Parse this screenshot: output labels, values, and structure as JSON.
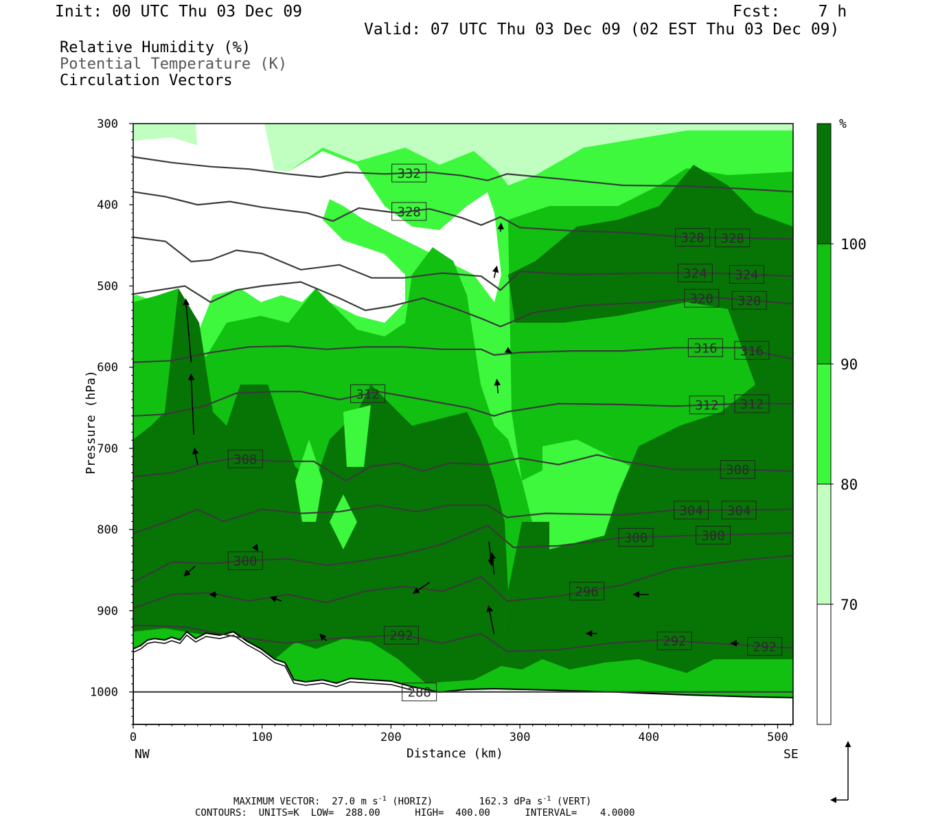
{
  "header": {
    "init": "Init: 00 UTC Thu 03 Dec 09",
    "fcst": "Fcst:    7 h",
    "valid": "Valid: 07 UTC Thu 03 Dec 09 (02 EST Thu 03 Dec 09)"
  },
  "legend": {
    "rh": "Relative Humidity (%)",
    "theta": "Potential Temperature (K)",
    "vectors": "Circulation Vectors"
  },
  "chart_data": {
    "type": "heatmap",
    "title": "Relative Humidity (%)",
    "xlabel": "Distance (km)",
    "ylabel": "Pressure (hPa)",
    "xlim": [
      0,
      512
    ],
    "ylim": [
      1040,
      300
    ],
    "x_ticks": [
      "0",
      "100",
      "200",
      "300",
      "400",
      "500"
    ],
    "y_ticks": [
      "300",
      "400",
      "500",
      "600",
      "700",
      "800",
      "900",
      "1000"
    ],
    "x_end_labels": {
      "left": "NW",
      "right": "SE"
    },
    "colorbar": {
      "unit": "%",
      "levels": [
        "70",
        "80",
        "90",
        "100"
      ],
      "colors": [
        "#ffffff",
        "#c0ffc0",
        "#3df83d",
        "#12c012",
        "#067506"
      ]
    },
    "isentropes": [
      {
        "theta": 288,
        "labels": [
          {
            "text": "288",
            "x": 222
          }
        ],
        "points": [
          [
            0,
            1000
          ],
          [
            512,
            1000
          ]
        ]
      },
      {
        "theta": 292,
        "labels": [
          {
            "text": "292",
            "x": 208
          },
          {
            "text": "292",
            "x": 420
          },
          {
            "text": "292",
            "x": 490
          }
        ],
        "points": [
          [
            0,
            918
          ],
          [
            40,
            920
          ],
          [
            80,
            932
          ],
          [
            120,
            940
          ],
          [
            150,
            935
          ],
          [
            180,
            932
          ],
          [
            210,
            930
          ],
          [
            240,
            940
          ],
          [
            270,
            928
          ],
          [
            290,
            950
          ],
          [
            330,
            948
          ],
          [
            370,
            940
          ],
          [
            410,
            936
          ],
          [
            450,
            940
          ],
          [
            512,
            946
          ]
        ]
      },
      {
        "theta": 296,
        "labels": [
          {
            "text": "296",
            "x": 352
          }
        ],
        "points": [
          [
            0,
            897
          ],
          [
            30,
            880
          ],
          [
            60,
            878
          ],
          [
            90,
            888
          ],
          [
            120,
            880
          ],
          [
            150,
            890
          ],
          [
            180,
            876
          ],
          [
            210,
            870
          ],
          [
            240,
            876
          ],
          [
            270,
            858
          ],
          [
            290,
            888
          ],
          [
            330,
            882
          ],
          [
            380,
            868
          ],
          [
            420,
            848
          ],
          [
            470,
            838
          ],
          [
            512,
            832
          ]
        ]
      },
      {
        "theta": 300,
        "labels": [
          {
            "text": "300",
            "x": 87
          },
          {
            "text": "300",
            "x": 390
          },
          {
            "text": "300",
            "x": 450
          }
        ],
        "points": [
          [
            0,
            865
          ],
          [
            30,
            840
          ],
          [
            60,
            842
          ],
          [
            90,
            838
          ],
          [
            120,
            836
          ],
          [
            150,
            844
          ],
          [
            180,
            838
          ],
          [
            210,
            830
          ],
          [
            240,
            818
          ],
          [
            275,
            795
          ],
          [
            295,
            822
          ],
          [
            330,
            820
          ],
          [
            380,
            810
          ],
          [
            420,
            808
          ],
          [
            470,
            806
          ],
          [
            512,
            804
          ]
        ]
      },
      {
        "theta": 304,
        "labels": [
          {
            "text": "304",
            "x": 433
          },
          {
            "text": "304",
            "x": 470
          }
        ],
        "points": [
          [
            0,
            805
          ],
          [
            30,
            788
          ],
          [
            50,
            775
          ],
          [
            70,
            790
          ],
          [
            100,
            775
          ],
          [
            130,
            780
          ],
          [
            160,
            778
          ],
          [
            190,
            770
          ],
          [
            220,
            778
          ],
          [
            245,
            770
          ],
          [
            275,
            770
          ],
          [
            290,
            785
          ],
          [
            320,
            780
          ],
          [
            380,
            782
          ],
          [
            420,
            776
          ],
          [
            470,
            776
          ],
          [
            512,
            775
          ]
        ]
      },
      {
        "theta": 308,
        "labels": [
          {
            "text": "308",
            "x": 87
          },
          {
            "text": "308",
            "x": 469
          }
        ],
        "points": [
          [
            0,
            735
          ],
          [
            30,
            730
          ],
          [
            55,
            718
          ],
          [
            80,
            712
          ],
          [
            110,
            716
          ],
          [
            140,
            716
          ],
          [
            165,
            740
          ],
          [
            185,
            722
          ],
          [
            205,
            718
          ],
          [
            225,
            728
          ],
          [
            245,
            718
          ],
          [
            275,
            720
          ],
          [
            300,
            712
          ],
          [
            330,
            720
          ],
          [
            360,
            708
          ],
          [
            380,
            716
          ],
          [
            420,
            726
          ],
          [
            470,
            726
          ],
          [
            512,
            728
          ]
        ]
      },
      {
        "theta": 312,
        "labels": [
          {
            "text": "312",
            "x": 182
          },
          {
            "text": "312",
            "x": 445
          },
          {
            "text": "312",
            "x": 480
          }
        ],
        "points": [
          [
            0,
            660
          ],
          [
            25,
            658
          ],
          [
            55,
            648
          ],
          [
            80,
            632
          ],
          [
            110,
            630
          ],
          [
            130,
            630
          ],
          [
            160,
            640
          ],
          [
            190,
            630
          ],
          [
            225,
            640
          ],
          [
            260,
            650
          ],
          [
            280,
            660
          ],
          [
            290,
            655
          ],
          [
            330,
            645
          ],
          [
            380,
            646
          ],
          [
            420,
            648
          ],
          [
            470,
            645
          ],
          [
            512,
            645
          ]
        ]
      },
      {
        "theta": 316,
        "labels": [
          {
            "text": "316",
            "x": 444
          },
          {
            "text": "316",
            "x": 480
          }
        ],
        "points": [
          [
            0,
            594
          ],
          [
            30,
            592
          ],
          [
            60,
            582
          ],
          [
            90,
            575
          ],
          [
            120,
            574
          ],
          [
            150,
            578
          ],
          [
            180,
            575
          ],
          [
            210,
            575
          ],
          [
            240,
            578
          ],
          [
            270,
            578
          ],
          [
            280,
            585
          ],
          [
            300,
            582
          ],
          [
            340,
            580
          ],
          [
            380,
            580
          ],
          [
            420,
            576
          ],
          [
            470,
            576
          ],
          [
            512,
            590
          ]
        ]
      },
      {
        "theta": 320,
        "labels": [
          {
            "text": "320",
            "x": 441
          },
          {
            "text": "320",
            "x": 478
          }
        ],
        "points": [
          [
            0,
            510
          ],
          [
            20,
            505
          ],
          [
            40,
            500
          ],
          [
            60,
            520
          ],
          [
            80,
            505
          ],
          [
            100,
            500
          ],
          [
            130,
            495
          ],
          [
            160,
            515
          ],
          [
            180,
            530
          ],
          [
            200,
            525
          ],
          [
            225,
            515
          ],
          [
            250,
            528
          ],
          [
            270,
            540
          ],
          [
            285,
            550
          ],
          [
            310,
            533
          ],
          [
            350,
            524
          ],
          [
            400,
            520
          ],
          [
            450,
            514
          ],
          [
            512,
            522
          ]
        ]
      },
      {
        "theta": 324,
        "labels": [
          {
            "text": "324",
            "x": 436
          },
          {
            "text": "324",
            "x": 476
          }
        ],
        "points": [
          [
            0,
            440
          ],
          [
            25,
            445
          ],
          [
            45,
            470
          ],
          [
            60,
            468
          ],
          [
            80,
            456
          ],
          [
            100,
            460
          ],
          [
            130,
            480
          ],
          [
            160,
            474
          ],
          [
            185,
            490
          ],
          [
            210,
            490
          ],
          [
            240,
            484
          ],
          [
            270,
            488
          ],
          [
            285,
            505
          ],
          [
            300,
            482
          ],
          [
            340,
            486
          ],
          [
            400,
            484
          ],
          [
            450,
            484
          ],
          [
            512,
            488
          ]
        ]
      },
      {
        "theta": 328,
        "labels": [
          {
            "text": "328",
            "x": 214
          },
          {
            "text": "328",
            "x": 434
          },
          {
            "text": "328",
            "x": 465
          }
        ],
        "points": [
          [
            0,
            384
          ],
          [
            25,
            390
          ],
          [
            50,
            400
          ],
          [
            75,
            396
          ],
          [
            100,
            403
          ],
          [
            135,
            410
          ],
          [
            155,
            420
          ],
          [
            175,
            404
          ],
          [
            205,
            410
          ],
          [
            230,
            405
          ],
          [
            255,
            416
          ],
          [
            270,
            425
          ],
          [
            285,
            415
          ],
          [
            300,
            428
          ],
          [
            340,
            432
          ],
          [
            380,
            434
          ],
          [
            430,
            440
          ],
          [
            512,
            442
          ]
        ]
      },
      {
        "theta": 332,
        "labels": [
          {
            "text": "332",
            "x": 214
          }
        ],
        "points": [
          [
            0,
            341
          ],
          [
            30,
            348
          ],
          [
            60,
            353
          ],
          [
            90,
            356
          ],
          [
            120,
            362
          ],
          [
            145,
            366
          ],
          [
            165,
            360
          ],
          [
            195,
            362
          ],
          [
            230,
            360
          ],
          [
            255,
            364
          ],
          [
            275,
            370
          ],
          [
            290,
            362
          ],
          [
            330,
            368
          ],
          [
            380,
            376
          ],
          [
            430,
            377
          ],
          [
            470,
            380
          ],
          [
            512,
            384
          ]
        ]
      }
    ],
    "vectors": [
      {
        "x": 45,
        "p": 594,
        "u": -1,
        "w": -11.5
      },
      {
        "x": 47,
        "p": 683,
        "u": -0.5,
        "w": -11
      },
      {
        "x": 50,
        "p": 720,
        "u": -0.6,
        "w": -3
      },
      {
        "x": 48,
        "p": 845,
        "u": -2,
        "w": 1.8
      },
      {
        "x": 230,
        "p": 865,
        "u": -3,
        "w": 2
      },
      {
        "x": 280,
        "p": 929,
        "u": -1,
        "w": -5.2
      },
      {
        "x": 276,
        "p": 815,
        "u": 0.5,
        "w": 4.3
      },
      {
        "x": 280,
        "p": 855,
        "u": -0.4,
        "w": -3.9
      },
      {
        "x": 283,
        "p": 632,
        "u": -0.2,
        "w": -2.5
      },
      {
        "x": 280,
        "p": 490,
        "u": 0.5,
        "w": -2.1
      },
      {
        "x": 285,
        "p": 433,
        "u": 0.1,
        "w": -1.5
      },
      {
        "x": 290,
        "p": 579,
        "u": 0.8,
        "w": 0.5
      },
      {
        "x": 400,
        "p": 880,
        "u": -2.8,
        "w": 0
      },
      {
        "x": 360,
        "p": 928,
        "u": -2,
        "w": 0
      },
      {
        "x": 470,
        "p": 940,
        "u": -1.5,
        "w": 0
      },
      {
        "x": 150,
        "p": 937,
        "u": -1.2,
        "w": -1.2
      },
      {
        "x": 115,
        "p": 888,
        "u": -2,
        "w": -0.7
      },
      {
        "x": 65,
        "p": 880,
        "u": -1.3,
        "w": 0
      },
      {
        "x": 95,
        "p": 822,
        "u": 0.4,
        "w": 0.6
      }
    ],
    "footer": {
      "max_vector_prefix": "MAXIMUM VECTOR:",
      "horiz_value": "27.0 m s",
      "horiz_sup": "-1",
      "horiz_tag": "(HORIZ)",
      "vert_value": "162.3 dPa s",
      "vert_sup": "-1",
      "vert_tag": "(VERT)",
      "contours": "CONTOURS:  UNITS=K  LOW=  288.00      HIGH=  400.00      INTERVAL=    4.0000"
    }
  }
}
